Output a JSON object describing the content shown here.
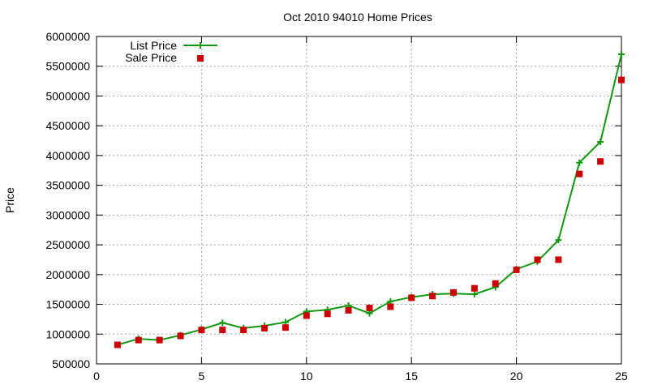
{
  "chart_data": {
    "type": "line",
    "title": "Oct 2010 94010 Home Prices",
    "ylabel": "Price",
    "xlabel": "",
    "xlim": [
      0,
      25
    ],
    "ylim": [
      500000,
      6000000
    ],
    "x_ticks": [
      0,
      5,
      10,
      15,
      20,
      25
    ],
    "y_ticks": [
      500000,
      1000000,
      1500000,
      2000000,
      2500000,
      3000000,
      3500000,
      4000000,
      4500000,
      5000000,
      5500000,
      6000000
    ],
    "grid": true,
    "legend_position": "top-left",
    "x": [
      1,
      2,
      3,
      4,
      5,
      6,
      7,
      8,
      9,
      10,
      11,
      12,
      13,
      14,
      15,
      16,
      17,
      18,
      19,
      20,
      21,
      22,
      23,
      24,
      25
    ],
    "series": [
      {
        "name": "List Price",
        "style": "line-plus",
        "color": "#109910",
        "values": [
          820000,
          920000,
          900000,
          980000,
          1080000,
          1190000,
          1100000,
          1140000,
          1200000,
          1380000,
          1410000,
          1480000,
          1350000,
          1550000,
          1620000,
          1670000,
          1680000,
          1670000,
          1790000,
          2090000,
          2220000,
          2580000,
          3880000,
          4230000,
          5700000
        ]
      },
      {
        "name": "Sale Price",
        "style": "marker-square",
        "color": "#cc0000",
        "values": [
          820000,
          900000,
          900000,
          970000,
          1070000,
          1070000,
          1070000,
          1100000,
          1110000,
          1310000,
          1340000,
          1400000,
          1440000,
          1460000,
          1610000,
          1640000,
          1700000,
          1770000,
          1850000,
          2080000,
          2250000,
          2250000,
          3690000,
          3900000,
          5270000
        ]
      }
    ]
  }
}
